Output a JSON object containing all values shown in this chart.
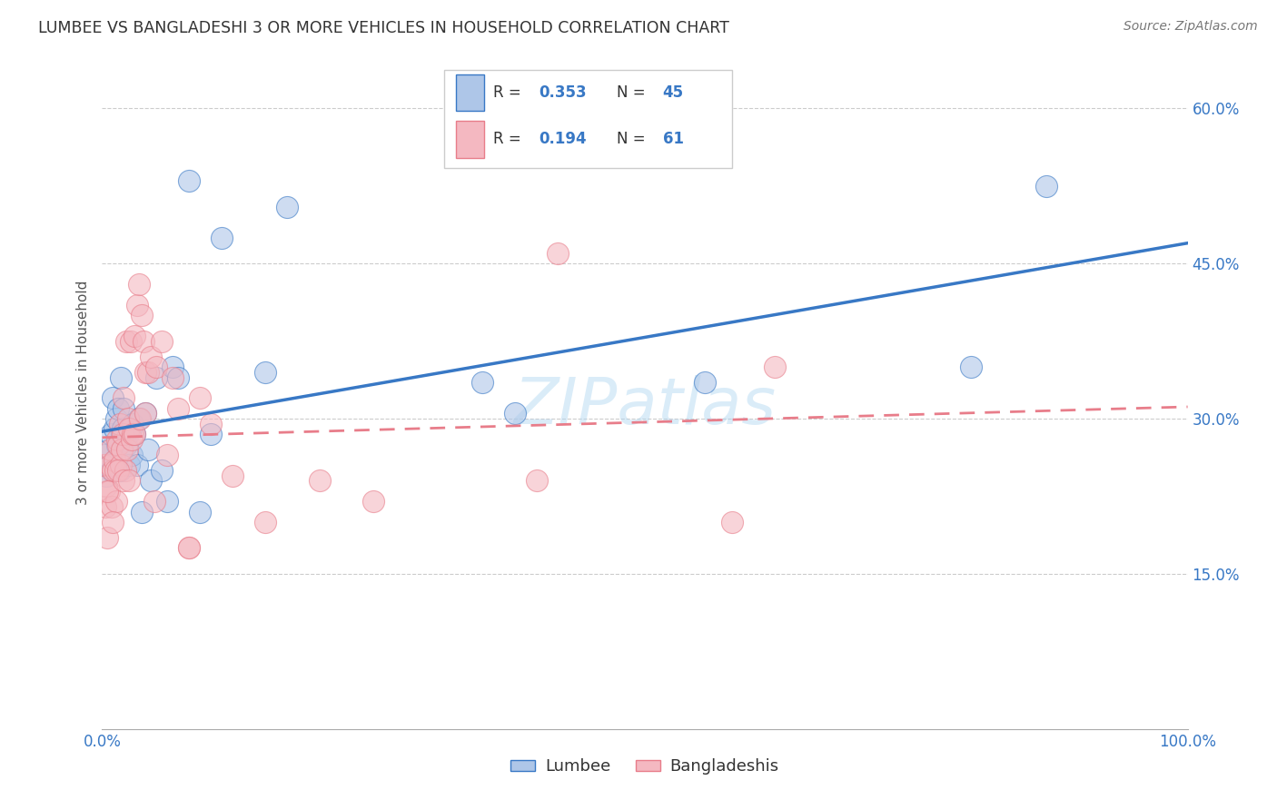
{
  "title": "LUMBEE VS BANGLADESHI 3 OR MORE VEHICLES IN HOUSEHOLD CORRELATION CHART",
  "source": "Source: ZipAtlas.com",
  "ylabel": "3 or more Vehicles in Household",
  "watermark": "ZIPatlas",
  "xlim": [
    0.0,
    1.0
  ],
  "ylim": [
    0.0,
    0.65
  ],
  "x_ticks": [
    0.0,
    0.2,
    0.4,
    0.6,
    0.8,
    1.0
  ],
  "x_tick_labels": [
    "0.0%",
    "",
    "",
    "",
    "",
    "100.0%"
  ],
  "y_ticks": [
    0.15,
    0.3,
    0.45,
    0.6
  ],
  "y_tick_labels": [
    "15.0%",
    "30.0%",
    "45.0%",
    "60.0%"
  ],
  "lumbee_color": "#aec6e8",
  "bangladeshi_color": "#f4b8c1",
  "lumbee_line_color": "#3878c5",
  "bangladeshi_line_color": "#e87d8a",
  "lumbee_R": 0.353,
  "lumbee_N": 45,
  "bangladeshi_R": 0.194,
  "bangladeshi_N": 61,
  "grid_color": "#cccccc",
  "background_color": "#ffffff",
  "title_color": "#333333",
  "axis_tick_color": "#3878c5",
  "lumbee_points_x": [
    0.002,
    0.004,
    0.006,
    0.008,
    0.009,
    0.01,
    0.011,
    0.012,
    0.013,
    0.014,
    0.015,
    0.016,
    0.017,
    0.018,
    0.019,
    0.02,
    0.022,
    0.024,
    0.025,
    0.026,
    0.027,
    0.028,
    0.03,
    0.032,
    0.034,
    0.036,
    0.04,
    0.042,
    0.045,
    0.05,
    0.055,
    0.06,
    0.065,
    0.07,
    0.08,
    0.09,
    0.1,
    0.11,
    0.15,
    0.17,
    0.35,
    0.38,
    0.555,
    0.8,
    0.87
  ],
  "lumbee_points_y": [
    0.265,
    0.245,
    0.27,
    0.285,
    0.25,
    0.32,
    0.29,
    0.26,
    0.3,
    0.275,
    0.31,
    0.25,
    0.34,
    0.285,
    0.29,
    0.31,
    0.275,
    0.285,
    0.255,
    0.29,
    0.265,
    0.295,
    0.285,
    0.255,
    0.3,
    0.21,
    0.305,
    0.27,
    0.24,
    0.34,
    0.25,
    0.22,
    0.35,
    0.34,
    0.53,
    0.21,
    0.285,
    0.475,
    0.345,
    0.505,
    0.335,
    0.305,
    0.335,
    0.35,
    0.525
  ],
  "bangladeshi_points_x": [
    0.001,
    0.003,
    0.004,
    0.005,
    0.006,
    0.007,
    0.008,
    0.009,
    0.01,
    0.011,
    0.012,
    0.013,
    0.014,
    0.015,
    0.016,
    0.017,
    0.018,
    0.019,
    0.02,
    0.021,
    0.022,
    0.023,
    0.024,
    0.025,
    0.026,
    0.027,
    0.028,
    0.03,
    0.032,
    0.034,
    0.036,
    0.038,
    0.04,
    0.042,
    0.045,
    0.048,
    0.05,
    0.055,
    0.06,
    0.065,
    0.07,
    0.08,
    0.09,
    0.1,
    0.12,
    0.15,
    0.2,
    0.25,
    0.4,
    0.42,
    0.005,
    0.01,
    0.015,
    0.02,
    0.025,
    0.03,
    0.035,
    0.04,
    0.08,
    0.58,
    0.62
  ],
  "bangladeshi_points_y": [
    0.255,
    0.215,
    0.235,
    0.185,
    0.23,
    0.255,
    0.27,
    0.215,
    0.25,
    0.26,
    0.25,
    0.22,
    0.28,
    0.275,
    0.295,
    0.255,
    0.27,
    0.285,
    0.32,
    0.25,
    0.375,
    0.27,
    0.3,
    0.29,
    0.375,
    0.28,
    0.285,
    0.38,
    0.41,
    0.43,
    0.4,
    0.375,
    0.345,
    0.345,
    0.36,
    0.22,
    0.35,
    0.375,
    0.265,
    0.34,
    0.31,
    0.175,
    0.32,
    0.295,
    0.245,
    0.2,
    0.24,
    0.22,
    0.24,
    0.46,
    0.23,
    0.2,
    0.25,
    0.24,
    0.24,
    0.285,
    0.3,
    0.305,
    0.175,
    0.2,
    0.35
  ]
}
